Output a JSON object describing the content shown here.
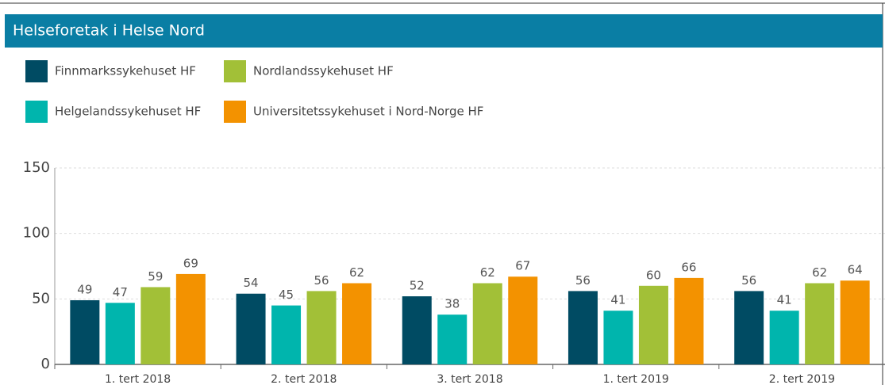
{
  "chart_data": {
    "type": "bar",
    "title": "Helseforetak i Helse Nord",
    "categories": [
      "1. tert 2018",
      "2. tert 2018",
      "3. tert 2018",
      "1. tert 2019",
      "2. tert 2019"
    ],
    "series": [
      {
        "name": "Finnmarkssykehuset HF",
        "color": "#004b63",
        "values": [
          49,
          54,
          52,
          56,
          56
        ]
      },
      {
        "name": "Helgelandssykehuset HF",
        "color": "#00b5ad",
        "values": [
          47,
          45,
          38,
          41,
          41
        ]
      },
      {
        "name": "Nordlandssykehuset HF",
        "color": "#a2c037",
        "values": [
          59,
          56,
          62,
          60,
          62
        ]
      },
      {
        "name": "Universitetssykehuset i Nord-Norge HF",
        "color": "#f39200",
        "values": [
          69,
          62,
          67,
          66,
          64
        ]
      }
    ],
    "ylim": [
      0,
      150
    ],
    "yticks": [
      0,
      50,
      100,
      150
    ],
    "grid": true
  }
}
